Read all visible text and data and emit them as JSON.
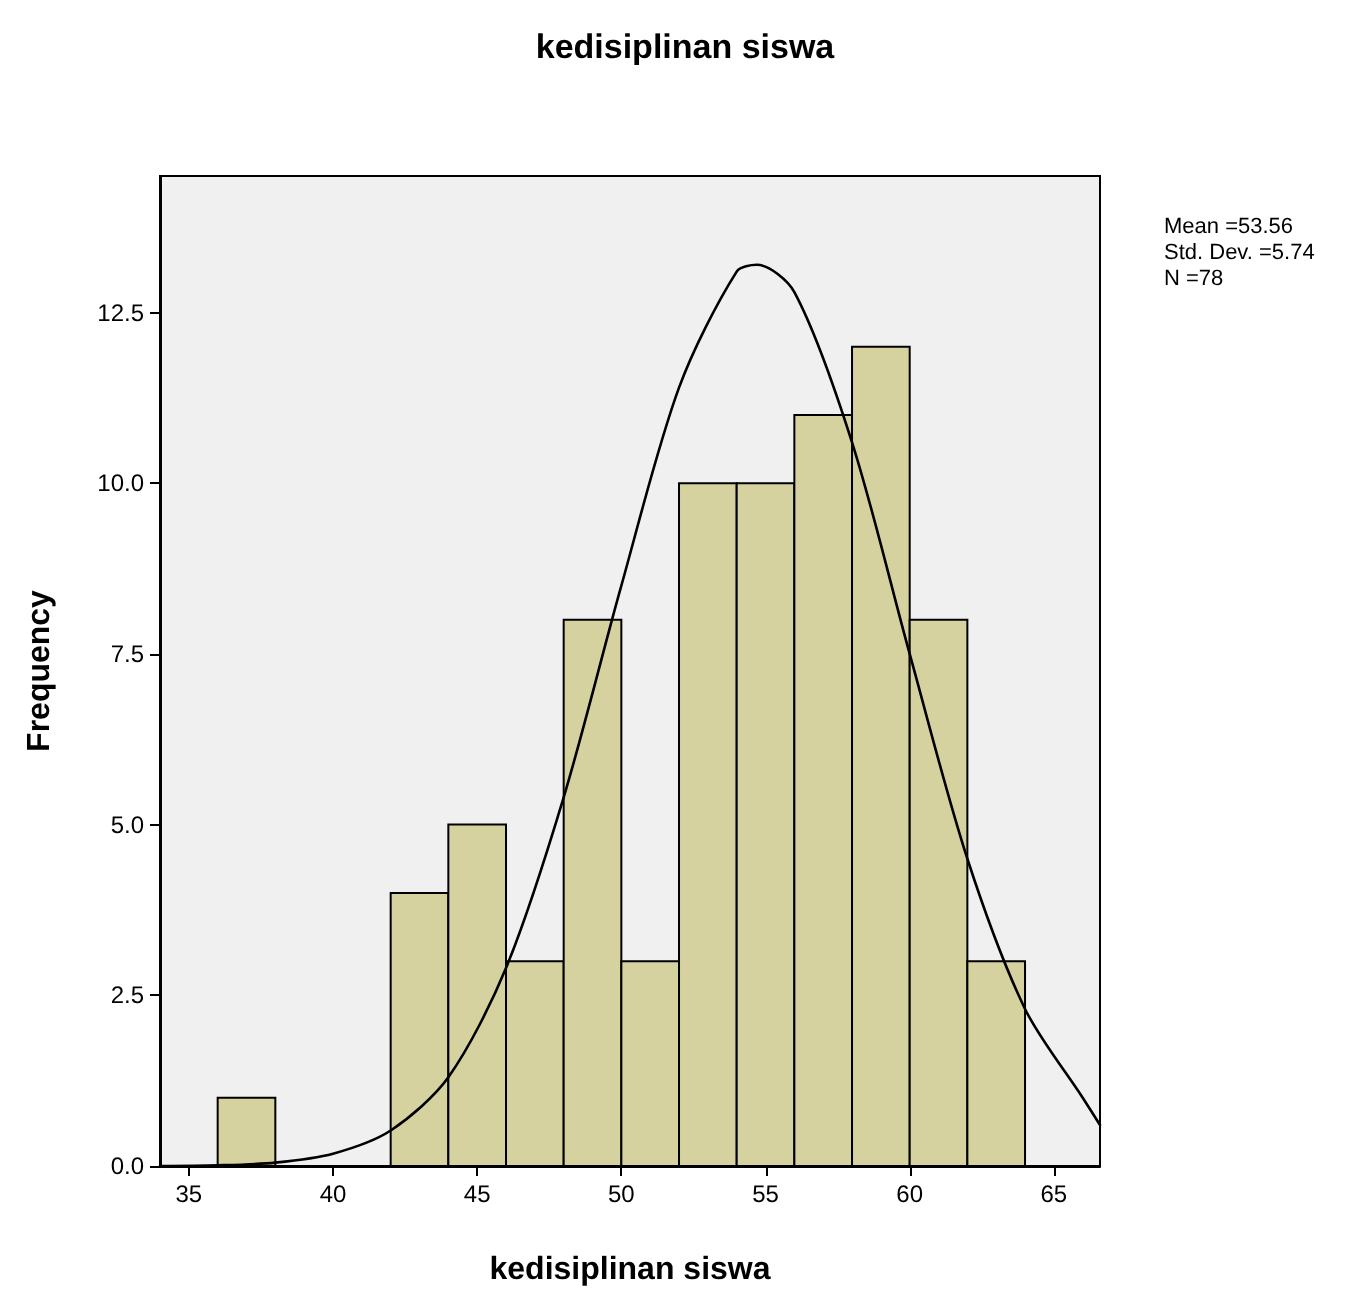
{
  "chart_data": {
    "type": "histogram",
    "title": "kedisiplinan siswa",
    "xlabel": "kedisiplinan siswa",
    "ylabel": "Frequency",
    "bins": [
      36,
      38,
      40,
      42,
      44,
      46,
      48,
      50,
      52,
      54,
      56,
      58,
      60,
      62,
      64
    ],
    "values": [
      1,
      0,
      0,
      4,
      5,
      3,
      8,
      3,
      10,
      10,
      11,
      12,
      8,
      3
    ],
    "color": "#d6d2a0",
    "series": [
      {
        "type": "line",
        "color": "#000000",
        "x": [
          34,
          36,
          38,
          40,
          42,
          44,
          46,
          48,
          50,
          52,
          54,
          54.7,
          56,
          58,
          60,
          62,
          64,
          66,
          66.6
        ],
        "values": [
          0.0,
          0.01,
          0.05,
          0.18,
          0.52,
          1.3,
          2.9,
          5.4,
          8.5,
          11.4,
          13.1,
          13.2,
          12.8,
          10.6,
          7.5,
          4.5,
          2.3,
          1.0,
          0.6
        ]
      }
    ],
    "xlim": [
      34,
      66.6
    ],
    "ylim": [
      0,
      14.5
    ],
    "xticks": [
      35,
      40,
      45,
      50,
      55,
      60,
      65
    ],
    "yticks": [
      {
        "value": 0,
        "label": "0.0"
      },
      {
        "value": 2.5,
        "label": "2.5"
      },
      {
        "value": 5,
        "label": "5.0"
      },
      {
        "value": 7.5,
        "label": "7.5"
      },
      {
        "value": 10,
        "label": "10.0"
      },
      {
        "value": 12.5,
        "label": "12.5"
      }
    ],
    "grid": false,
    "marker": "none",
    "line_style": "solid",
    "annotations": [
      "Mean =53.56",
      "Std. Dev. =5.74",
      "N =78"
    ]
  }
}
